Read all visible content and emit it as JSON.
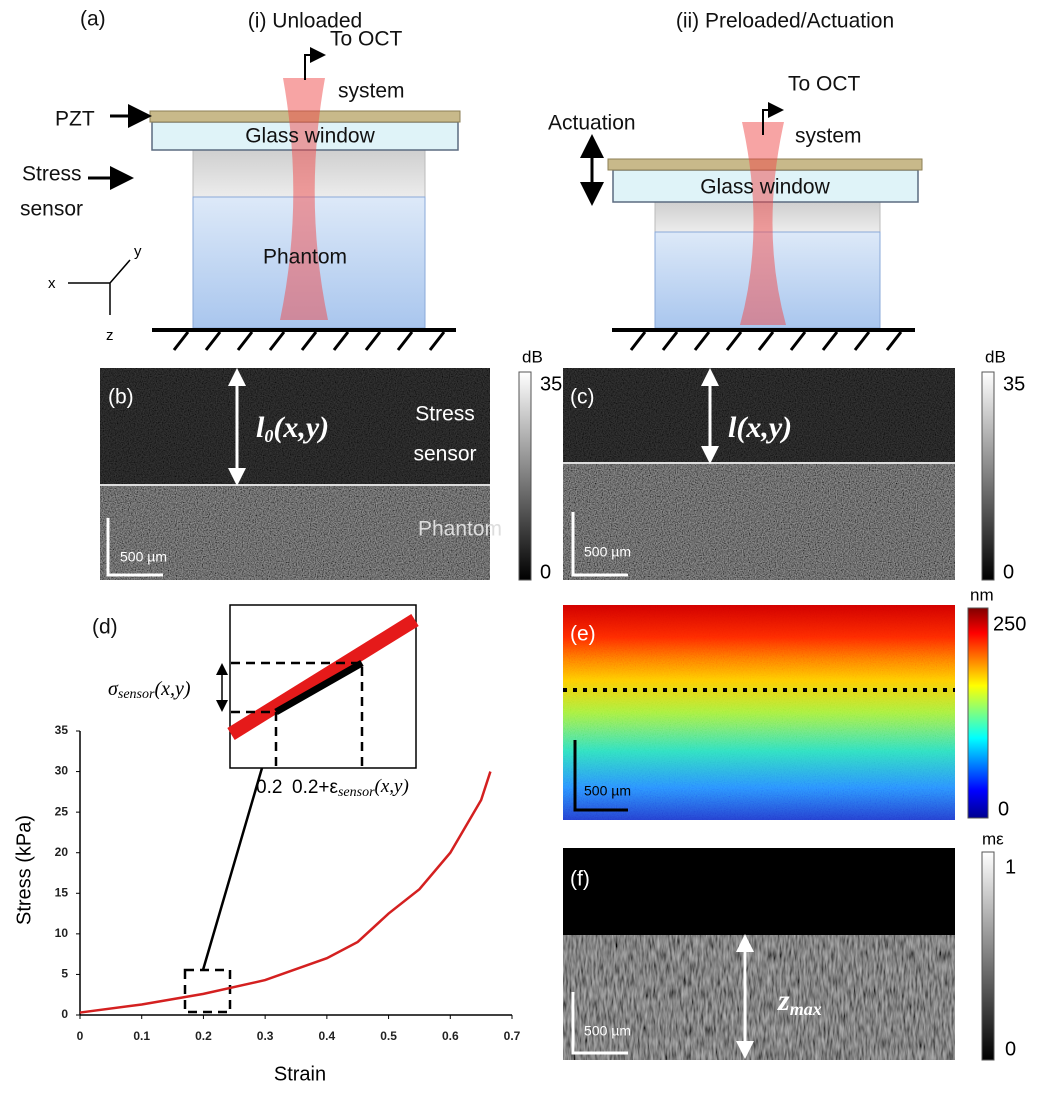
{
  "panel_a": {
    "label": "(a)",
    "unloaded": {
      "title": "(i) Unloaded",
      "pzt": "PZT",
      "glass": "Glass window",
      "sensor_line1": "Stress",
      "sensor_line2": "sensor",
      "phantom": "Phantom",
      "oct_line1": "To OCT",
      "oct_line2": "system",
      "axis_x": "x",
      "axis_y": "y",
      "axis_z": "z"
    },
    "preloaded": {
      "title": "(ii) Preloaded/Actuation",
      "actuation": "Actuation",
      "glass": "Glass window",
      "oct_line1": "To OCT",
      "oct_line2": "system"
    }
  },
  "panel_b": {
    "label": "(b)",
    "thickness": {
      "main": "l",
      "sub": "0",
      "rest": "(x,y)"
    },
    "sensor_line1": "Stress",
    "sensor_line2": "sensor",
    "phantom": "Phantom",
    "scale": "500 µm",
    "colorbar": {
      "unit": "dB",
      "max": 35,
      "min": 0
    }
  },
  "panel_c": {
    "label": "(c)",
    "thickness": "l(x,y)",
    "scale": "500 µm",
    "colorbar": {
      "unit": "dB",
      "max": 35,
      "min": 0
    }
  },
  "panel_e": {
    "label": "(e)",
    "scale": "500 µm",
    "colorbar": {
      "unit": "nm",
      "max": 250,
      "min": 0
    }
  },
  "panel_f": {
    "label": "(f)",
    "depth": {
      "main": "z",
      "sub": "max"
    },
    "scale": "500 µm",
    "colorbar": {
      "unit": "mε",
      "max": 1,
      "min": 0
    }
  },
  "chart_data": {
    "type": "line",
    "label": "(d)",
    "x_label": "Strain",
    "y_label": "Stress (kPa)",
    "x": [
      0,
      0.1,
      0.2,
      0.3,
      0.4,
      0.45,
      0.5,
      0.55,
      0.6,
      0.65,
      0.665
    ],
    "series": [
      {
        "color": "#d42020",
        "values": [
          0.3,
          1.3,
          2.6,
          4.3,
          7,
          9,
          12.5,
          15.5,
          20,
          26.5,
          30
        ]
      }
    ],
    "xlim": [
      0,
      0.7
    ],
    "xticks": [
      0,
      0.1,
      0.2,
      0.3,
      0.4,
      0.5,
      0.6,
      0.7
    ],
    "ylim": [
      0,
      35
    ],
    "yticks": [
      0,
      5,
      10,
      15,
      20,
      25,
      30,
      35
    ],
    "inset": {
      "stress": {
        "main": "σ",
        "sub": "sensor",
        "rest": "(x,y)"
      },
      "x_left": "0.2",
      "x_right": {
        "main": "0.2+ε",
        "sub": "sensor",
        "rest": "(x,y)"
      }
    }
  }
}
